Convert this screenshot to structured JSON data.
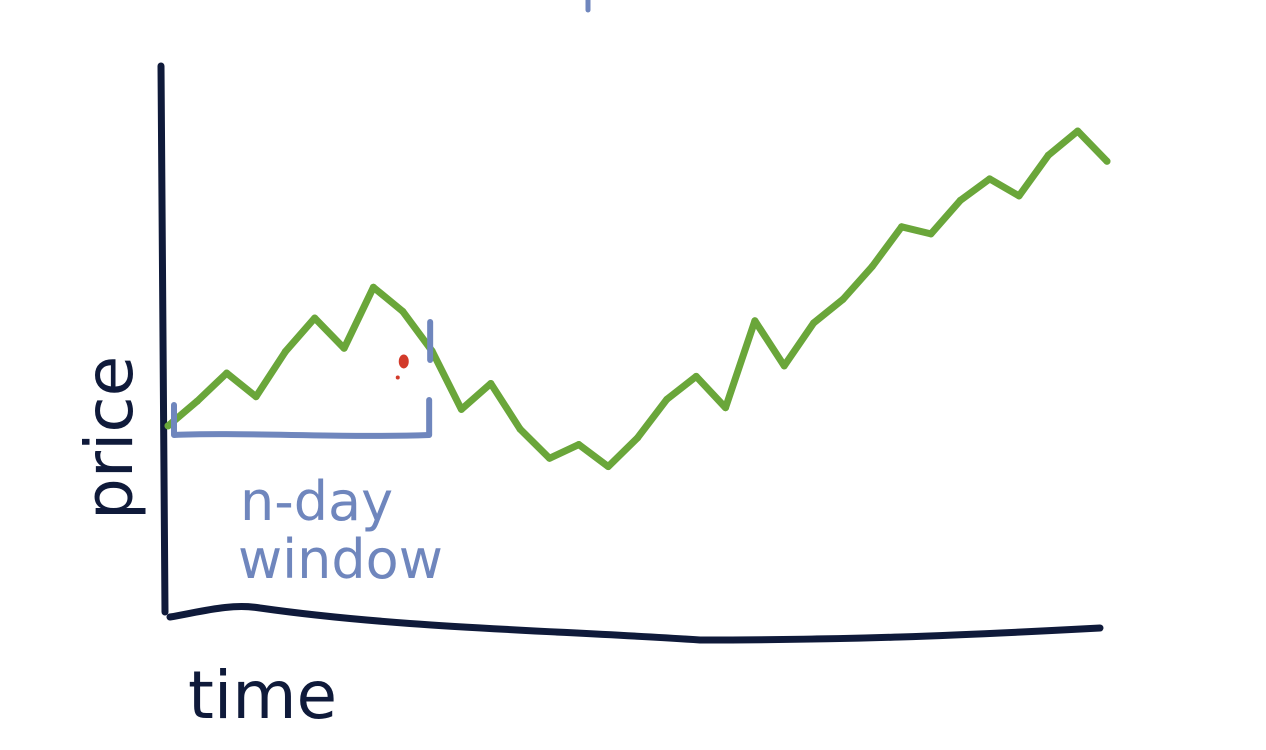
{
  "chart_data": {
    "type": "line",
    "xlabel": "time",
    "ylabel": "price",
    "grid": false,
    "legend": "none",
    "colors": {
      "axes": "#0f1a3a",
      "series": "#6aa63a",
      "window": "#6f86bd",
      "marker": "#d23a2a"
    },
    "series": [
      {
        "values": [
          35.3,
          39.8,
          44.9,
          40.6,
          48.8,
          54.9,
          49.4,
          60.5,
          56.1,
          48.9,
          38.3,
          43.0,
          34.7,
          29.4,
          31.9,
          27.9,
          33.1,
          40.1,
          44.3,
          38.6,
          54.4,
          46.2,
          54.0,
          58.3,
          64.3,
          71.5,
          70.2,
          76.3,
          80.2,
          77.1,
          84.5,
          88.9,
          83.4
        ]
      }
    ],
    "annotations": [
      {
        "label_lines": [
          "n-day",
          "window"
        ],
        "x_start": 0,
        "x_end": 8.9,
        "marker_index": 8
      }
    ]
  }
}
